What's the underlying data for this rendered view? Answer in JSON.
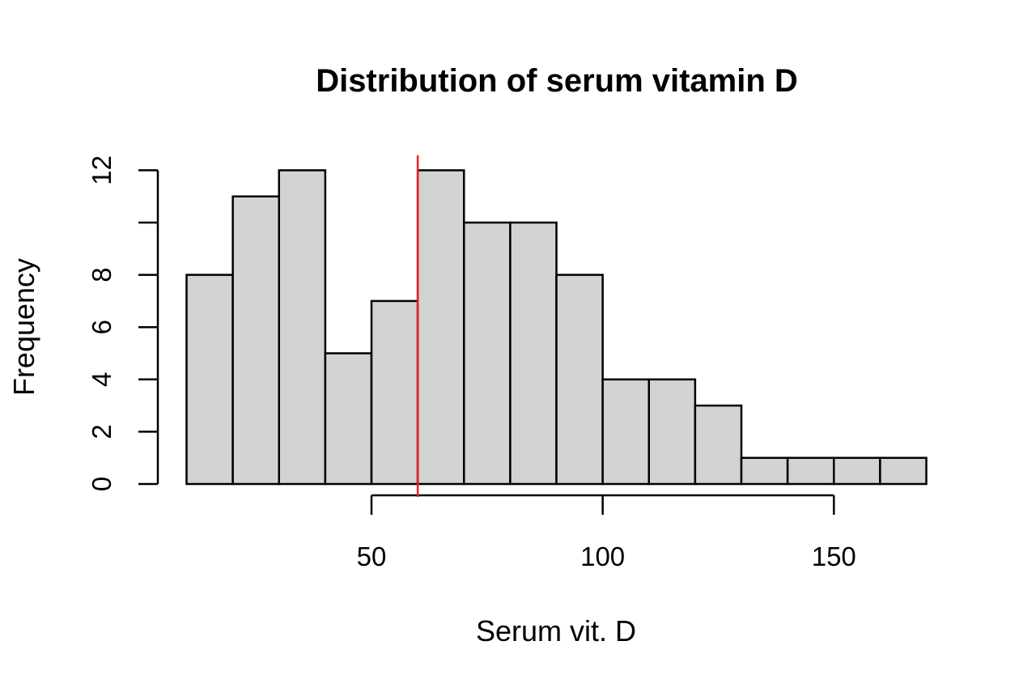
{
  "chart_data": {
    "type": "bar",
    "histogram": true,
    "title": "Distribution of serum vitamin D",
    "xlabel": "Serum vit. D",
    "ylabel": "Frequency",
    "bins": [
      {
        "x0": 10,
        "x1": 20,
        "count": 8
      },
      {
        "x0": 20,
        "x1": 30,
        "count": 11
      },
      {
        "x0": 30,
        "x1": 40,
        "count": 12
      },
      {
        "x0": 40,
        "x1": 50,
        "count": 5
      },
      {
        "x0": 50,
        "x1": 60,
        "count": 7
      },
      {
        "x0": 60,
        "x1": 70,
        "count": 12
      },
      {
        "x0": 70,
        "x1": 80,
        "count": 10
      },
      {
        "x0": 80,
        "x1": 90,
        "count": 10
      },
      {
        "x0": 90,
        "x1": 100,
        "count": 8
      },
      {
        "x0": 100,
        "x1": 110,
        "count": 4
      },
      {
        "x0": 110,
        "x1": 120,
        "count": 4
      },
      {
        "x0": 120,
        "x1": 130,
        "count": 3
      },
      {
        "x0": 130,
        "x1": 140,
        "count": 1
      },
      {
        "x0": 140,
        "x1": 150,
        "count": 1
      },
      {
        "x0": 150,
        "x1": 160,
        "count": 1
      },
      {
        "x0": 160,
        "x1": 170,
        "count": 1
      }
    ],
    "xticks": [
      50,
      100,
      150
    ],
    "yticks": [
      0,
      2,
      4,
      6,
      8,
      10,
      12
    ],
    "ytick_labels_shown": [
      0,
      2,
      4,
      6,
      8,
      12
    ],
    "xlim": [
      10,
      170
    ],
    "ylim": [
      0,
      12
    ],
    "grid": false,
    "reference_line": {
      "x": 60,
      "color": "#e8231f"
    },
    "colors": {
      "bar_fill": "#d3d3d3",
      "bar_stroke": "#000000",
      "axis": "#000000"
    }
  }
}
